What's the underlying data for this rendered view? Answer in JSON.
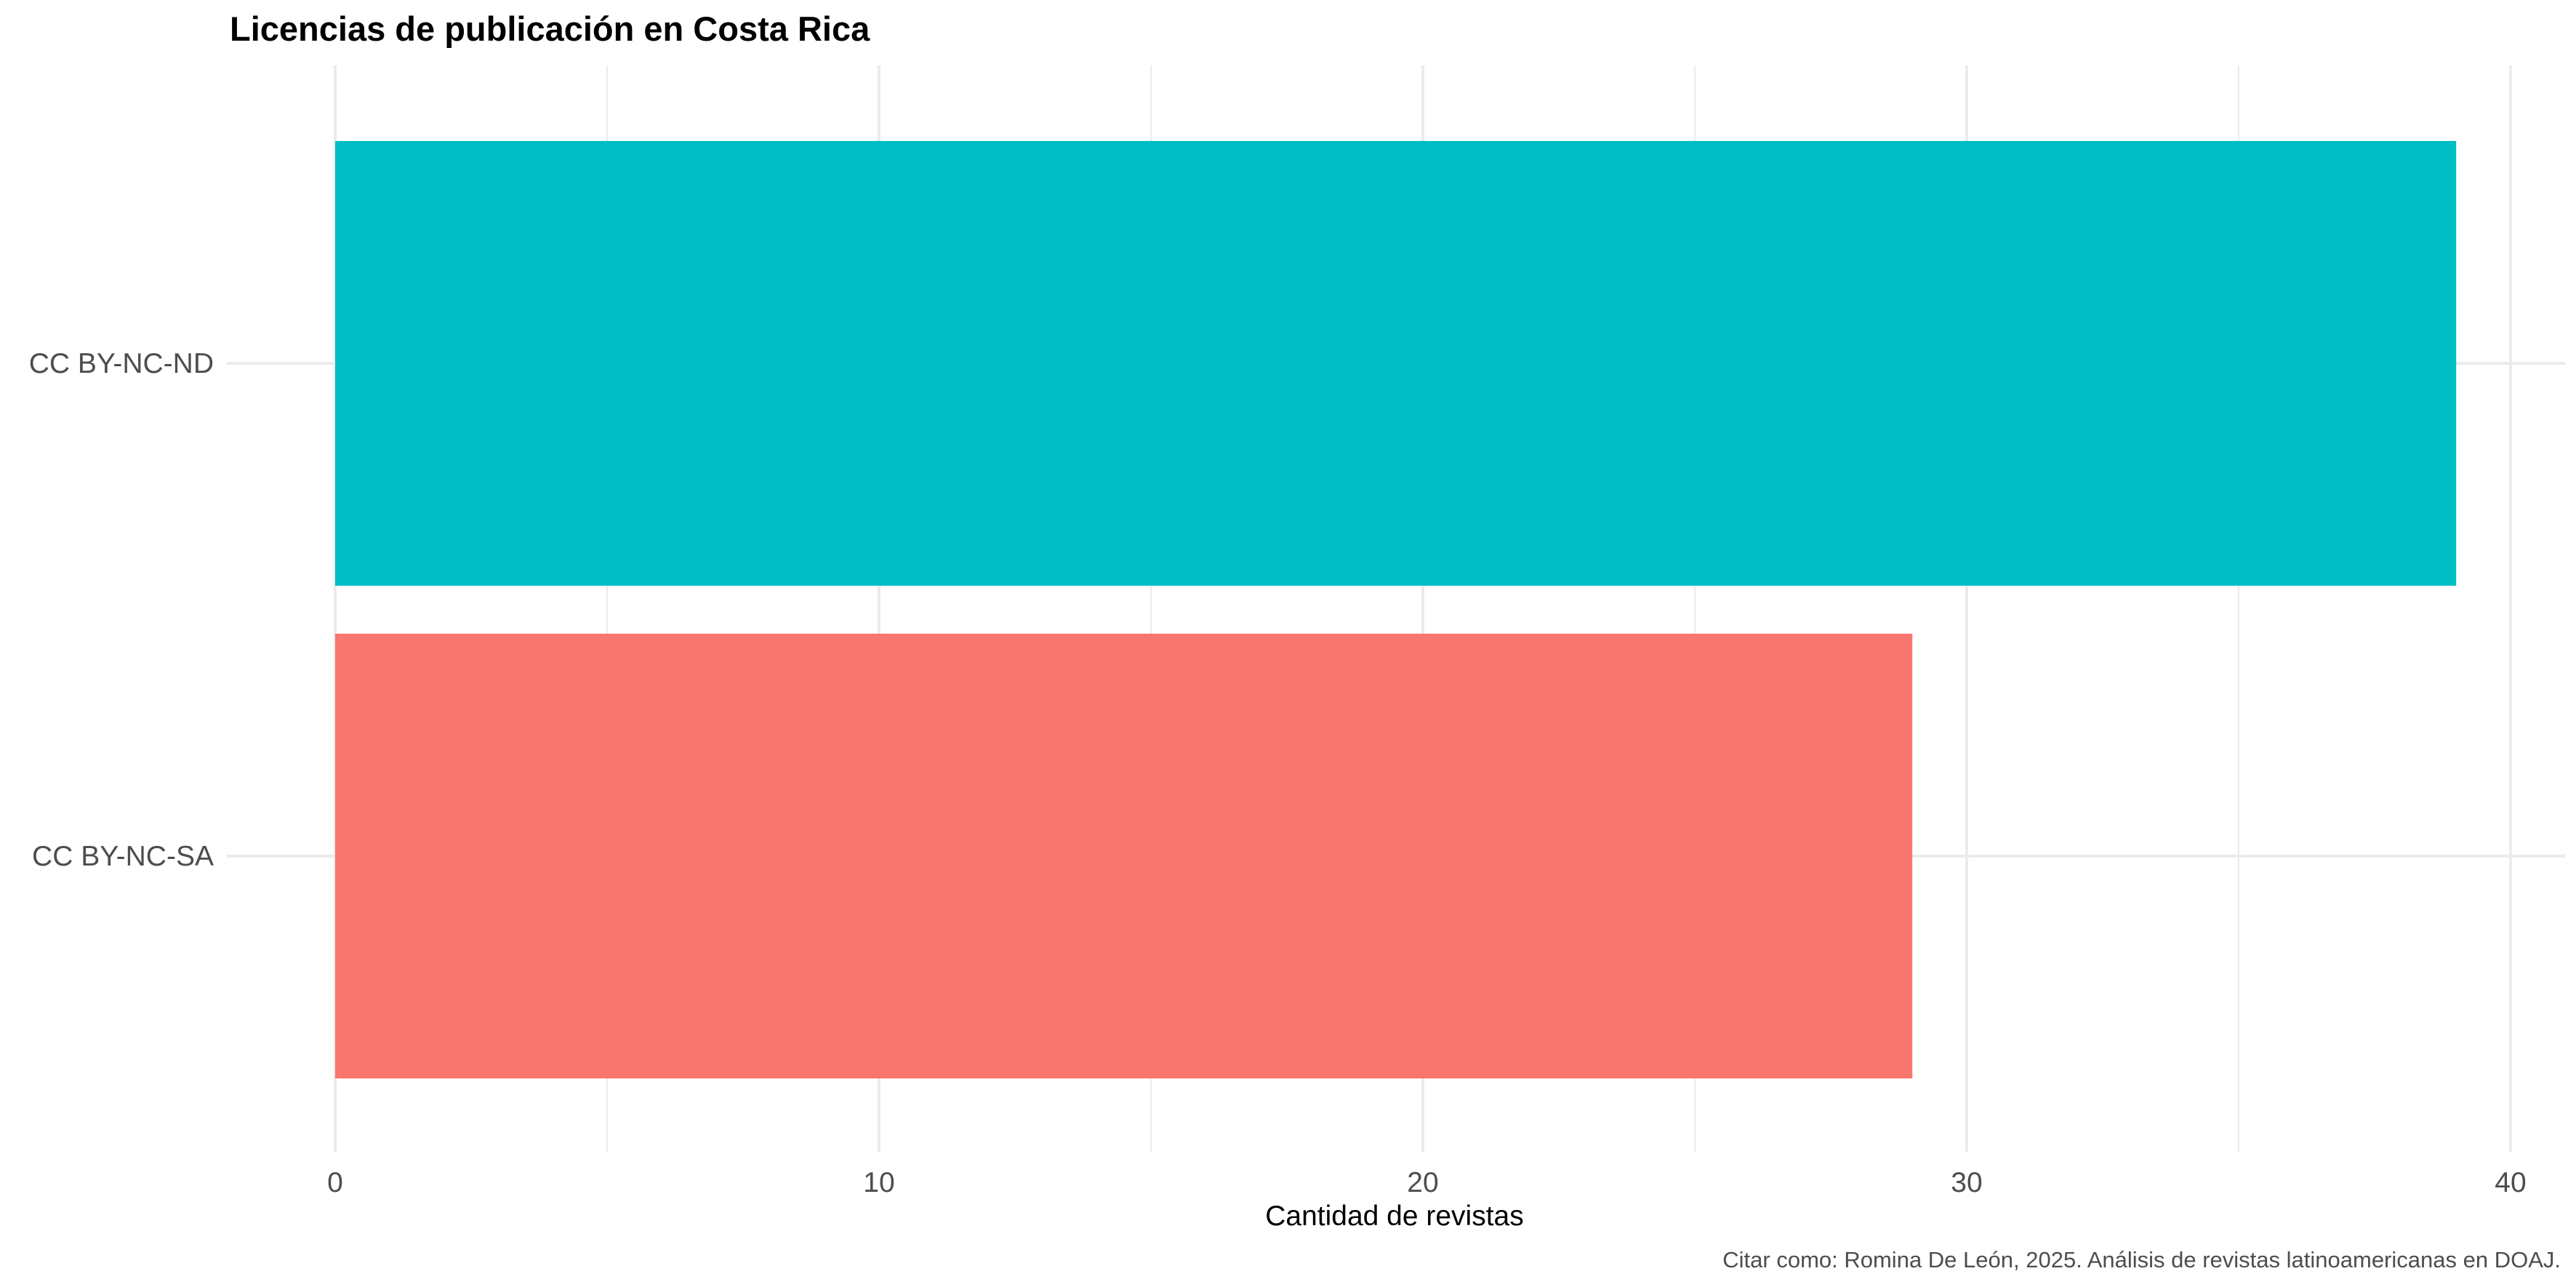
{
  "chart_data": {
    "type": "bar",
    "orientation": "horizontal",
    "title": "Licencias de publicación en Costa Rica",
    "xlabel": "Cantidad de revistas",
    "ylabel": "",
    "caption": "Citar como: Romina De León, 2025. Análisis de revistas latinoamericanas en DOAJ.",
    "categories": [
      "CC BY-NC-ND",
      "CC BY-NC-SA"
    ],
    "values": [
      39,
      29
    ],
    "colors": [
      "#00BFC4",
      "#F8766D"
    ],
    "xlim": [
      0,
      40.95
    ],
    "xticks": [
      0,
      10,
      20,
      30,
      40
    ],
    "xminor": [
      5,
      15,
      25,
      35
    ],
    "grid": true,
    "legend": "none"
  }
}
